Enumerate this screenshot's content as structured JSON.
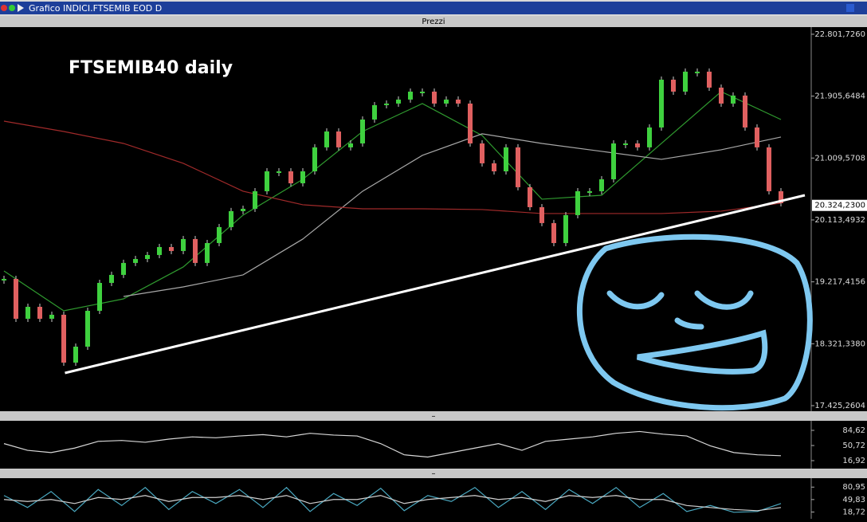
{
  "window": {
    "title": "Grafico INDICI.FTSEMIB EOD D"
  },
  "panels": [
    {
      "title": "Prezzi",
      "annotation": "FTSEMIB40 daily",
      "ylim": [
        17356,
        22882
      ],
      "yticks": [
        {
          "value": 22801.726,
          "label": "22.801,7260"
        },
        {
          "value": 21905.6484,
          "label": "21.905,6484"
        },
        {
          "value": 21009.5708,
          "label": "21.009,5708"
        },
        {
          "value": 20113.4932,
          "label": "20.113,4932"
        },
        {
          "value": 19217.4156,
          "label": "19.217,4156"
        },
        {
          "value": 18321.338,
          "label": "18.321,3380"
        },
        {
          "value": 17425.2604,
          "label": "17.425,2604"
        }
      ],
      "last_price": {
        "value": 20324.23,
        "label": "20.324,2300"
      },
      "up_color": "#3fd13f",
      "down_color": "#e06060",
      "closes": [
        19260,
        18683,
        18856,
        18683,
        18741,
        18048,
        18279,
        18798,
        19202,
        19318,
        19491,
        19548,
        19606,
        19721,
        19664,
        19837,
        19491,
        19779,
        20010,
        20241,
        20275,
        20529,
        20817,
        20817,
        20644,
        20817,
        21164,
        21394,
        21164,
        21221,
        21567,
        21775,
        21798,
        21856,
        21971,
        21971,
        21798,
        21856,
        21798,
        21221,
        20933,
        20817,
        21164,
        20587,
        20298,
        20068,
        19779,
        20183,
        20529,
        20529,
        20702,
        21221,
        21221,
        21164,
        21452,
        22144,
        21971,
        22260,
        22260,
        22029,
        21798,
        21914,
        21452,
        21164,
        20529,
        20356
      ],
      "moving_averages": [
        {
          "color": "#2f9a2f",
          "values": [
            19375,
            18798,
            18971,
            19433,
            20183,
            20702,
            21394,
            21798,
            21337,
            20414,
            20471,
            21221,
            21971,
            21567
          ]
        },
        {
          "color": "#a8a8a8",
          "values": [
            null,
            null,
            19006,
            19144,
            19318,
            19837,
            20529,
            21048,
            21360,
            21221,
            21106,
            20991,
            21129,
            21314
          ]
        },
        {
          "color": "#a02a2a",
          "values": [
            21544,
            21394,
            21221,
            20933,
            20529,
            20333,
            20275,
            20275,
            20264,
            20206,
            20206,
            20206,
            20241,
            20356
          ]
        }
      ],
      "trendline": {
        "x": [
          5.1,
          67
        ],
        "values": [
          17898,
          20471
        ],
        "color": "#ffffff"
      }
    },
    {
      "ylim": [
        2.7,
        102.4
      ],
      "yticks": [
        {
          "value": 84.62,
          "label": "84,62"
        },
        {
          "value": 50.72,
          "label": "50,72"
        },
        {
          "value": 16.92,
          "label": "16,92"
        }
      ],
      "series": [
        {
          "color": "#d8d8d8",
          "values": [
            55,
            40,
            35,
            45,
            60,
            62,
            58,
            65,
            70,
            68,
            72,
            75,
            70,
            78,
            74,
            72,
            55,
            30,
            25,
            35,
            45,
            55,
            40,
            60,
            65,
            70,
            78,
            82,
            76,
            72,
            50,
            35,
            30,
            28
          ]
        }
      ]
    },
    {
      "ylim": [
        7.7,
        99.3
      ],
      "yticks": [
        {
          "value": 80.95,
          "label": "80,95"
        },
        {
          "value": 49.83,
          "label": "49,83"
        },
        {
          "value": 18.72,
          "label": "18,72"
        }
      ],
      "series": [
        {
          "color": "#4aa8c0",
          "values": [
            60,
            30,
            70,
            20,
            75,
            35,
            80,
            25,
            70,
            40,
            75,
            30,
            80,
            20,
            65,
            35,
            78,
            22,
            60,
            45,
            80,
            30,
            70,
            25,
            75,
            40,
            80,
            30,
            65,
            20,
            35,
            18,
            20,
            40
          ]
        },
        {
          "color": "#d0d0d0",
          "values": [
            50,
            45,
            50,
            40,
            55,
            50,
            60,
            45,
            55,
            55,
            60,
            50,
            60,
            40,
            50,
            50,
            60,
            40,
            50,
            55,
            60,
            50,
            55,
            45,
            60,
            55,
            60,
            50,
            50,
            35,
            30,
            25,
            22,
            30
          ]
        }
      ]
    }
  ]
}
